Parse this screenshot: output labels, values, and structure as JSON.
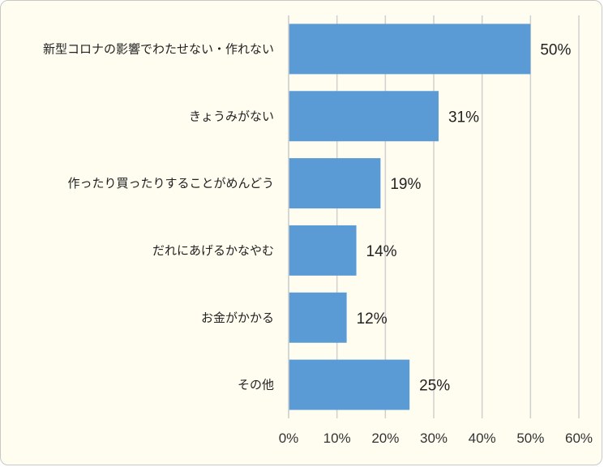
{
  "chart_data": {
    "type": "bar",
    "orientation": "horizontal",
    "categories": [
      "新型コロナの影響でわたせない・作れない",
      "きょうみがない",
      "作ったり買ったりすることがめんどう",
      "だれにあげるかなやむ",
      "お金がかかる",
      "その他"
    ],
    "values": [
      50,
      31,
      19,
      14,
      12,
      25
    ],
    "value_labels": [
      "50%",
      "31%",
      "19%",
      "14%",
      "12%",
      "25%"
    ],
    "xlim": [
      0,
      60
    ],
    "x_ticks": [
      "0%",
      "10%",
      "20%",
      "30%",
      "40%",
      "50%",
      "60%"
    ],
    "grid": true,
    "legend": "none",
    "title": "",
    "xlabel": "",
    "ylabel": "",
    "bar_color": "#5b9bd5",
    "grid_color": "#d0d0d0",
    "background": "#fffdf0"
  }
}
